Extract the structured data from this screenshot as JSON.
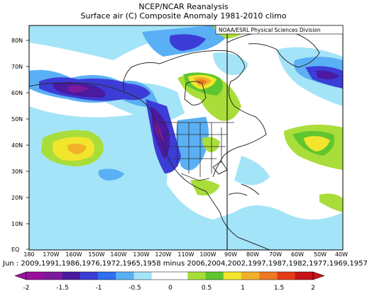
{
  "header": {
    "title": "NCEP/NCAR Reanalysis",
    "subtitle": "Surface air (C) Composite Anomaly 1981-2010 climo",
    "credit": "NOAA/ESRL Physical Sciences Division"
  },
  "axes": {
    "lat_labels": [
      "EQ",
      "10N",
      "20N",
      "30N",
      "40N",
      "50N",
      "60N",
      "70N",
      "80N"
    ],
    "lon_labels": [
      "180",
      "170W",
      "160W",
      "150W",
      "140W",
      "130W",
      "120W",
      "110W",
      "100W",
      "90W",
      "80W",
      "70W",
      "60W",
      "50W",
      "40W"
    ]
  },
  "composite_note": "Jun : 2009,1991,1986,1976,1972,1965,1958 minus 2006,2004,2002,1997,1987,1982,1977,1969,1957",
  "colorbar": {
    "labels": [
      "-2",
      "-1.5",
      "-1",
      "-0.5",
      "0",
      "0.5",
      "1",
      "1.5",
      "2"
    ],
    "colors": [
      "#9b0d9c",
      "#7d1a9c",
      "#4b1aa0",
      "#3c3cd6",
      "#2f6ff0",
      "#5ab0f5",
      "#a4e4f8",
      "#ffffff",
      "#ffffff",
      "#a9dd3a",
      "#5fc62f",
      "#f2e52d",
      "#f0b128",
      "#ef7a22",
      "#e53a1a",
      "#c8121a"
    ]
  }
}
